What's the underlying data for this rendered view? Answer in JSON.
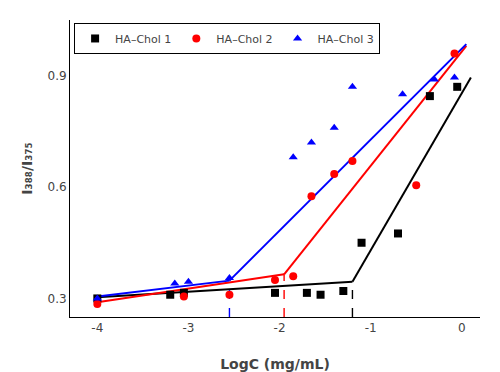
{
  "chart_data": {
    "type": "scatter",
    "xlabel": "LogC (mg/mL)",
    "ylabel": "I₃₈₈/I₃₇₅",
    "xlim": [
      -4.3,
      0.2
    ],
    "ylim": [
      0.25,
      1.05
    ],
    "xticks": [
      -4,
      -3,
      -2,
      -1,
      0
    ],
    "yticks": [
      0.3,
      0.6,
      0.9
    ],
    "grid": false,
    "legend": "upper left",
    "series": [
      {
        "name": "HA–Chol 1",
        "color": "black",
        "marker": "square",
        "x": [
          -4.0,
          -3.2,
          -3.05,
          -2.05,
          -1.7,
          -1.55,
          -1.3,
          -1.1,
          -0.7,
          -0.35,
          -0.05
        ],
        "values": [
          0.3,
          0.31,
          0.315,
          0.315,
          0.315,
          0.31,
          0.32,
          0.45,
          0.475,
          0.845,
          0.87
        ],
        "segments": [
          {
            "x": [
              -4.0,
              -1.2
            ],
            "values": [
              0.303,
              0.345
            ]
          },
          {
            "x": [
              -1.2,
              0.1
            ],
            "values": [
              0.345,
              0.895
            ]
          }
        ],
        "cac": {
          "x": -1.2,
          "y": 0.345,
          "line_style": "dashed"
        }
      },
      {
        "name": "HA–Chol 2",
        "color": "red",
        "marker": "circle",
        "x": [
          -4.0,
          -3.05,
          -2.55,
          -2.05,
          -1.85,
          -1.65,
          -1.4,
          -1.2,
          -0.5,
          -0.08
        ],
        "values": [
          0.285,
          0.305,
          0.31,
          0.35,
          0.36,
          0.575,
          0.635,
          0.67,
          0.605,
          0.96
        ],
        "segments": [
          {
            "x": [
              -4.0,
              -1.95
            ],
            "values": [
              0.29,
              0.365
            ]
          },
          {
            "x": [
              -1.95,
              0.05
            ],
            "values": [
              0.365,
              0.98
            ]
          }
        ],
        "cac": {
          "x": -1.95,
          "y": 0.365,
          "line_style": "dashed"
        }
      },
      {
        "name": "HA–Chol 3",
        "color": "blue",
        "marker": "triangle",
        "x": [
          -4.0,
          -3.15,
          -3.0,
          -2.55,
          -1.85,
          -1.65,
          -1.4,
          -1.2,
          -0.65,
          -0.3,
          -0.08
        ],
        "values": [
          0.3,
          0.34,
          0.345,
          0.355,
          0.68,
          0.72,
          0.76,
          0.87,
          0.85,
          0.89,
          0.895
        ],
        "segments": [
          {
            "x": [
              -4.0,
              -2.55
            ],
            "values": [
              0.305,
              0.348
            ]
          },
          {
            "x": [
              -2.55,
              0.05
            ],
            "values": [
              0.348,
              0.985
            ]
          }
        ],
        "cac": {
          "x": -2.55,
          "y": 0.348,
          "line_style": "dashed"
        }
      }
    ]
  }
}
